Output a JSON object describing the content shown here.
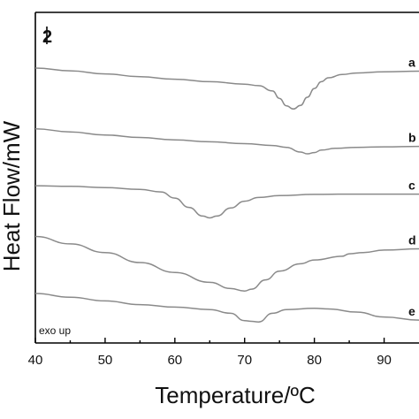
{
  "chart_data": {
    "type": "line",
    "panel_label": "2",
    "xlabel": "Temperature/ºC",
    "ylabel": "Heat Flow/mW",
    "annotation": "exo up",
    "xlim": [
      40,
      95
    ],
    "xticks": [
      40,
      50,
      60,
      70,
      80,
      90
    ],
    "y_tick_labels": false,
    "series": [
      {
        "name": "a",
        "color": "#8a8a8a",
        "points": [
          [
            40,
            0.0
          ],
          [
            45,
            -0.22
          ],
          [
            50,
            -0.47
          ],
          [
            55,
            -0.7
          ],
          [
            60,
            -0.9
          ],
          [
            65,
            -1.1
          ],
          [
            70,
            -1.3
          ],
          [
            72,
            -1.42
          ],
          [
            74,
            -1.85
          ],
          [
            75,
            -2.45
          ],
          [
            76,
            -3.05
          ],
          [
            77,
            -3.3
          ],
          [
            78,
            -3.02
          ],
          [
            79,
            -2.35
          ],
          [
            80,
            -1.65
          ],
          [
            81,
            -1.1
          ],
          [
            82,
            -0.78
          ],
          [
            84,
            -0.52
          ],
          [
            86,
            -0.4
          ],
          [
            90,
            -0.3
          ],
          [
            95,
            -0.25
          ]
        ]
      },
      {
        "name": "b",
        "color": "#8a8a8a",
        "points": [
          [
            40,
            -4.9
          ],
          [
            45,
            -5.15
          ],
          [
            50,
            -5.4
          ],
          [
            55,
            -5.6
          ],
          [
            60,
            -5.8
          ],
          [
            65,
            -5.95
          ],
          [
            70,
            -6.1
          ],
          [
            74,
            -6.25
          ],
          [
            76,
            -6.4
          ],
          [
            78,
            -6.78
          ],
          [
            79,
            -6.92
          ],
          [
            80,
            -6.82
          ],
          [
            81,
            -6.62
          ],
          [
            83,
            -6.48
          ],
          [
            86,
            -6.4
          ],
          [
            90,
            -6.36
          ],
          [
            95,
            -6.32
          ]
        ]
      },
      {
        "name": "c",
        "color": "#8a8a8a",
        "points": [
          [
            40,
            -9.5
          ],
          [
            45,
            -9.55
          ],
          [
            50,
            -9.65
          ],
          [
            55,
            -9.8
          ],
          [
            58,
            -10.0
          ],
          [
            60,
            -10.5
          ],
          [
            62,
            -11.25
          ],
          [
            64,
            -11.95
          ],
          [
            65,
            -12.1
          ],
          [
            66,
            -11.95
          ],
          [
            68,
            -11.3
          ],
          [
            70,
            -10.75
          ],
          [
            72,
            -10.45
          ],
          [
            75,
            -10.3
          ],
          [
            80,
            -10.2
          ],
          [
            85,
            -10.18
          ],
          [
            90,
            -10.18
          ],
          [
            95,
            -10.18
          ]
        ]
      },
      {
        "name": "d",
        "color": "#8a8a8a",
        "points": [
          [
            40,
            -13.6
          ],
          [
            45,
            -14.2
          ],
          [
            50,
            -14.9
          ],
          [
            55,
            -15.7
          ],
          [
            60,
            -16.5
          ],
          [
            65,
            -17.3
          ],
          [
            68,
            -17.8
          ],
          [
            70,
            -18.0
          ],
          [
            71,
            -17.85
          ],
          [
            73,
            -17.1
          ],
          [
            75,
            -16.4
          ],
          [
            78,
            -15.8
          ],
          [
            80,
            -15.5
          ],
          [
            84,
            -15.2
          ],
          [
            85,
            -15.0
          ],
          [
            87,
            -14.9
          ],
          [
            90,
            -14.7
          ],
          [
            95,
            -14.6
          ]
        ]
      },
      {
        "name": "e",
        "color": "#8a8a8a",
        "points": [
          [
            40,
            -18.2
          ],
          [
            45,
            -18.5
          ],
          [
            50,
            -18.8
          ],
          [
            55,
            -19.1
          ],
          [
            60,
            -19.3
          ],
          [
            65,
            -19.5
          ],
          [
            68,
            -19.8
          ],
          [
            70,
            -20.4
          ],
          [
            71,
            -20.45
          ],
          [
            72,
            -20.5
          ],
          [
            74,
            -19.8
          ],
          [
            76,
            -19.5
          ],
          [
            80,
            -19.4
          ],
          [
            82,
            -19.45
          ],
          [
            86,
            -19.7
          ],
          [
            90,
            -20.1
          ],
          [
            95,
            -20.35
          ]
        ]
      }
    ]
  }
}
